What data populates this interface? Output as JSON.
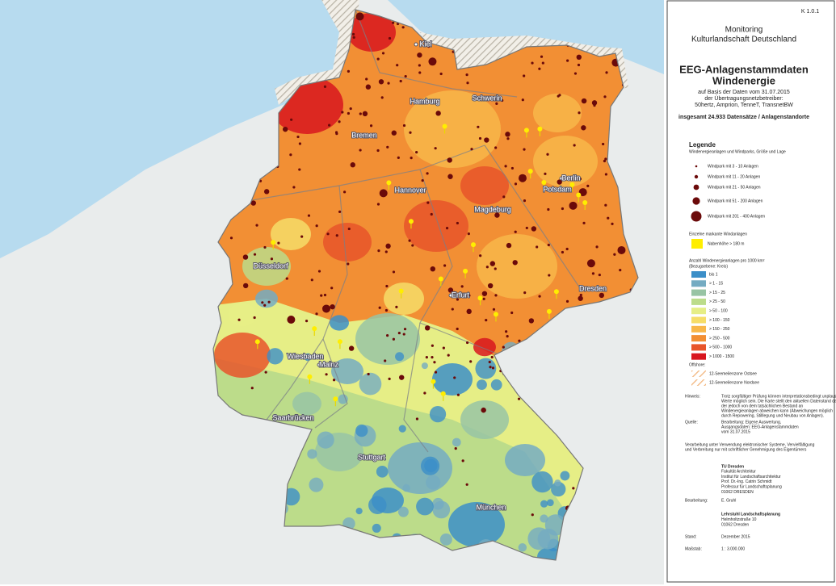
{
  "header": {
    "code": "K 1.0.1",
    "project": [
      "Monitoring",
      "Kulturlandschaft Deutschland"
    ],
    "title": [
      "EEG-Anlagenstammdaten",
      "Windenergie"
    ],
    "subtitle": [
      "auf Basis der Daten vom 31.07.2015",
      "der Übertragungsnetzbetreiber:",
      "50hertz, Amprion, TenneT, TransnetBW"
    ],
    "total": "insgesamt 24.933 Datensätze / Anlagenstandorte"
  },
  "legend": {
    "title": "Legende",
    "windparks_heading": "Windenergieanlagen und Windparks, Größe und Lage",
    "windparks": [
      "Windpark mit 3 - 10 Anlagen",
      "Windpark mit 11 - 20 Anlagen",
      "Windpark mit 21 - 50 Anlagen",
      "Windpark mit 51 - 200 Anlagen",
      "Windpark mit 201 - 400 Anlagen"
    ],
    "windpark_color": "#6b0a0a",
    "markante_heading": "Einzelne markante Windanlagen",
    "markante": "Nabenhöhe > 180 m",
    "markante_color": "#ffee00",
    "density_heading": [
      "Anzahl Windenergieanlagen pro 1000 km²",
      "(Bezugsebene: Kreis)"
    ],
    "density_classes": [
      {
        "label": "bis 1",
        "color": "#3c8fc8"
      },
      {
        "label": "> 1 - 15",
        "color": "#74abc2"
      },
      {
        "label": "> 15 - 25",
        "color": "#98c4a4"
      },
      {
        "label": "> 25 - 50",
        "color": "#bcdc8a"
      },
      {
        "label": "> 50 - 100",
        "color": "#e6ee86"
      },
      {
        "label": "> 100 - 150",
        "color": "#f6dd68"
      },
      {
        "label": "> 150 - 250",
        "color": "#f8b74a"
      },
      {
        "label": "> 250 - 500",
        "color": "#f28f34"
      },
      {
        "label": "> 500 - 1000",
        "color": "#e8552a"
      },
      {
        "label": "> 1000 - 1500",
        "color": "#d8161e"
      }
    ],
    "offshore_heading": "Offshore:",
    "offshore": [
      "12-Seemeilenzone Ostsee",
      "12-Seemeilenzone Nordsee"
    ]
  },
  "notes": {
    "hinweis_label": "Hinweis:",
    "hinweis": [
      "Trotz sorgfältiger Prüfung können interpretationsbedingt unplausible",
      "Werte möglich sein. Die Karte stellt den aktuellen Datenstand dar,",
      "der jedoch von dem tatsächlichen Bestand an",
      "Windenergieanlagen abweichen kann (Abweichungen möglich",
      "durch Repowering, Stilllegung und Neubau von Anlagen)."
    ],
    "quelle_label": "Quelle:",
    "quelle": [
      "Bearbeitung: Eigene Auswertung,",
      "Ausgangsdaten: EEG-Anlagenstammdaten",
      "vom 31.07.2015"
    ],
    "verarbeitung": [
      "Verarbeitung unter Verwendung elektronischer Systeme, Vervielfältigung",
      "und Verbreitung nur mit schriftlicher Genehmigung des Eigentümers"
    ],
    "institution": [
      "TU Dresden",
      "Fakultät Architektur",
      "Institut für Landschaftsarchitektur",
      "Prof. Dr.-Ing. Catrin Schmidt",
      "Professur für Landschaftsplanung",
      "01062 DRESDEN"
    ],
    "bearbeitung_label": "Bearbeitung:",
    "bearbeitung": "E. Gruhl",
    "lehrstuhl": [
      "Lehrstuhl Landschaftsplanung",
      "Helmholtzstraße 10",
      "01062 Dresden"
    ],
    "stand_label": "Stand:",
    "stand": "Dezember 2015",
    "massstab_label": "Maßstab:",
    "massstab": "1 : 3.000.000"
  },
  "map": {
    "cities": [
      "Kiel",
      "Hamburg",
      "Schwerin",
      "Bremen",
      "Berlin",
      "Potsdam",
      "Hannover",
      "Magdeburg",
      "Düsseldorf",
      "Erfurt",
      "Dresden",
      "Wiesbaden",
      "Mainz",
      "Saarbrücken",
      "Stuttgart",
      "München"
    ]
  }
}
